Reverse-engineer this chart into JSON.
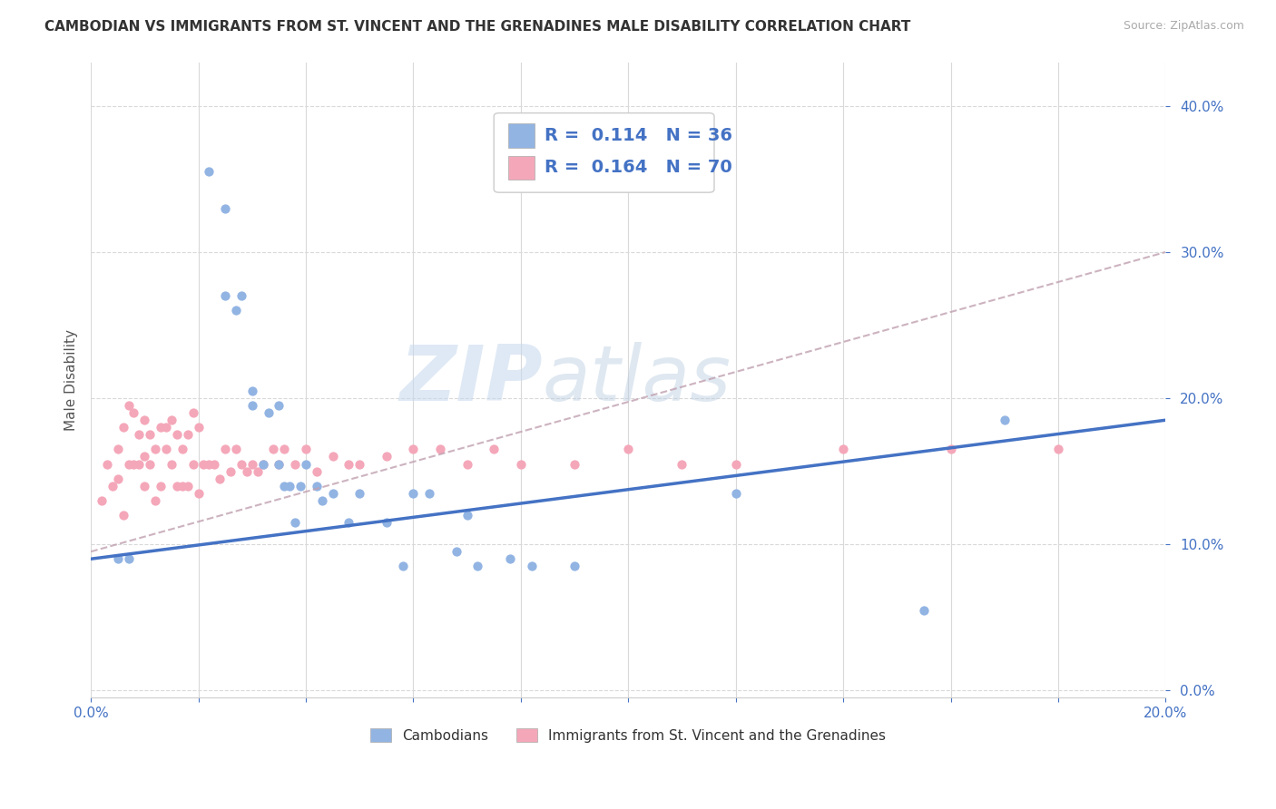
{
  "title": "CAMBODIAN VS IMMIGRANTS FROM ST. VINCENT AND THE GRENADINES MALE DISABILITY CORRELATION CHART",
  "source": "Source: ZipAtlas.com",
  "ylabel": "Male Disability",
  "ytick_values": [
    0.0,
    0.1,
    0.2,
    0.3,
    0.4
  ],
  "xlim": [
    0,
    0.2
  ],
  "ylim": [
    -0.005,
    0.43
  ],
  "legend1_R": "0.114",
  "legend1_N": "36",
  "legend2_R": "0.164",
  "legend2_N": "70",
  "cambodian_color": "#92b4e3",
  "svgrenadines_color": "#f4a7b9",
  "line1_color": "#4472c4",
  "line2_color": "#c0a0b0",
  "watermark_zip": "ZIP",
  "watermark_atlas": "atlas",
  "background_color": "#ffffff",
  "legend_label1": "Cambodians",
  "legend_label2": "Immigrants from St. Vincent and the Grenadines",
  "line1_x0": 0.0,
  "line1_y0": 0.09,
  "line1_x1": 0.2,
  "line1_y1": 0.185,
  "line2_x0": 0.0,
  "line2_y0": 0.095,
  "line2_x1": 0.2,
  "line2_y1": 0.3,
  "cambodian_points_x": [
    0.022,
    0.025,
    0.025,
    0.027,
    0.028,
    0.03,
    0.03,
    0.032,
    0.033,
    0.035,
    0.035,
    0.036,
    0.037,
    0.038,
    0.039,
    0.04,
    0.042,
    0.043,
    0.045,
    0.048,
    0.05,
    0.055,
    0.058,
    0.06,
    0.063,
    0.068,
    0.07,
    0.072,
    0.078,
    0.082,
    0.09,
    0.12,
    0.155,
    0.17,
    0.005,
    0.007
  ],
  "cambodian_points_y": [
    0.355,
    0.27,
    0.33,
    0.26,
    0.27,
    0.195,
    0.205,
    0.155,
    0.19,
    0.195,
    0.155,
    0.14,
    0.14,
    0.115,
    0.14,
    0.155,
    0.14,
    0.13,
    0.135,
    0.115,
    0.135,
    0.115,
    0.085,
    0.135,
    0.135,
    0.095,
    0.12,
    0.085,
    0.09,
    0.085,
    0.085,
    0.135,
    0.055,
    0.185,
    0.09,
    0.09
  ],
  "svg_points_x": [
    0.002,
    0.003,
    0.004,
    0.005,
    0.005,
    0.006,
    0.006,
    0.007,
    0.007,
    0.008,
    0.008,
    0.009,
    0.009,
    0.01,
    0.01,
    0.01,
    0.011,
    0.011,
    0.012,
    0.012,
    0.013,
    0.013,
    0.014,
    0.014,
    0.015,
    0.015,
    0.016,
    0.016,
    0.017,
    0.017,
    0.018,
    0.018,
    0.019,
    0.019,
    0.02,
    0.02,
    0.021,
    0.022,
    0.023,
    0.024,
    0.025,
    0.026,
    0.027,
    0.028,
    0.029,
    0.03,
    0.031,
    0.032,
    0.034,
    0.035,
    0.036,
    0.038,
    0.04,
    0.042,
    0.045,
    0.048,
    0.05,
    0.055,
    0.06,
    0.065,
    0.07,
    0.075,
    0.08,
    0.09,
    0.1,
    0.11,
    0.12,
    0.14,
    0.16,
    0.18
  ],
  "svg_points_y": [
    0.13,
    0.155,
    0.14,
    0.145,
    0.165,
    0.12,
    0.18,
    0.155,
    0.195,
    0.155,
    0.19,
    0.155,
    0.175,
    0.14,
    0.16,
    0.185,
    0.155,
    0.175,
    0.13,
    0.165,
    0.14,
    0.18,
    0.165,
    0.18,
    0.155,
    0.185,
    0.14,
    0.175,
    0.14,
    0.165,
    0.14,
    0.175,
    0.155,
    0.19,
    0.135,
    0.18,
    0.155,
    0.155,
    0.155,
    0.145,
    0.165,
    0.15,
    0.165,
    0.155,
    0.15,
    0.155,
    0.15,
    0.155,
    0.165,
    0.155,
    0.165,
    0.155,
    0.165,
    0.15,
    0.16,
    0.155,
    0.155,
    0.16,
    0.165,
    0.165,
    0.155,
    0.165,
    0.155,
    0.155,
    0.165,
    0.155,
    0.155,
    0.165,
    0.165,
    0.165
  ]
}
